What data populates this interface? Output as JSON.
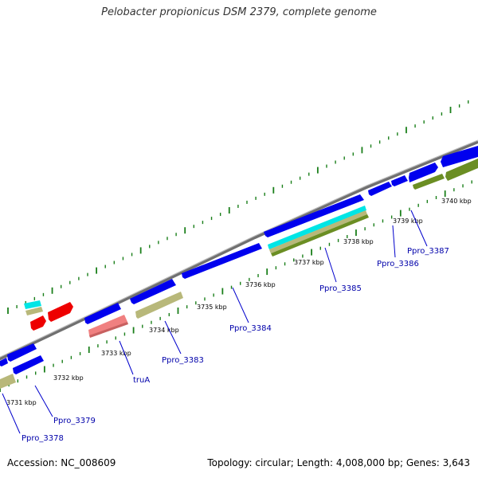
{
  "title": "Pelobacter propionicus DSM 2379, complete genome",
  "footer": {
    "accession": "Accession: NC_008609",
    "summary": "Topology: circular; Length: 4,008,000 bp; Genes: 3,643"
  },
  "colors": {
    "gene_blue": "#0000ee",
    "gene_red": "#ee0000",
    "gene_khaki": "#b8b87a",
    "gene_olive": "#6b8e23",
    "gene_cyan": "#00e5e5",
    "gene_pink": "#f08080",
    "tick_green": "#1a7f1a",
    "backbone": "#8a8a8a",
    "label_blue": "#0000aa"
  },
  "kbp_labels": [
    "3731 kbp",
    "3732 kbp",
    "3733 kbp",
    "3734 kbp",
    "3735 kbp",
    "3736 kbp",
    "3737 kbp",
    "3738 kbp",
    "3739 kbp",
    "3740 kbp"
  ],
  "gene_labels": [
    "Ppro_3378",
    "Ppro_3379",
    "truA",
    "Ppro_3383",
    "Ppro_3384",
    "Ppro_3385",
    "Ppro_3386",
    "Ppro_3387"
  ]
}
